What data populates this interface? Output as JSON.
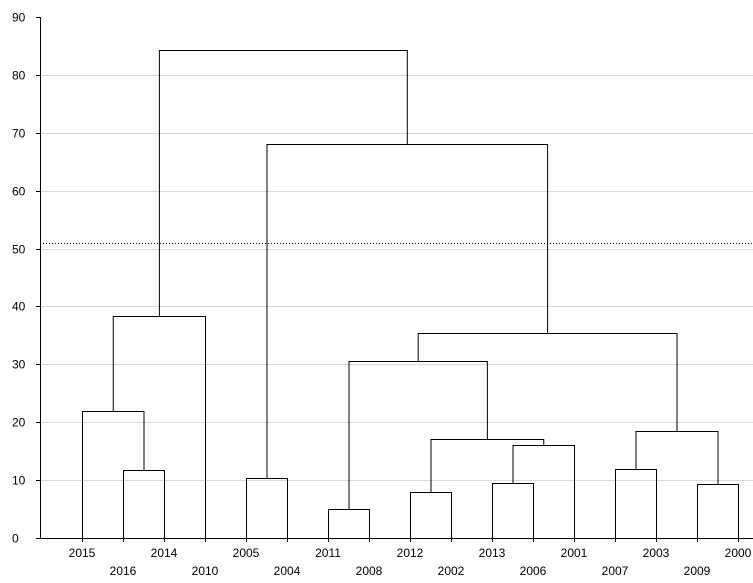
{
  "chart_data": {
    "type": "dendrogram",
    "title": "",
    "xlabel": "",
    "ylabel": "",
    "ylim": [
      0,
      90
    ],
    "y_ticks": [
      0,
      10,
      20,
      30,
      40,
      50,
      60,
      70,
      80,
      90
    ],
    "grid": true,
    "cut_line": 51,
    "leaves": [
      "2015",
      "2016",
      "2014",
      "2010",
      "2005",
      "2004",
      "2011",
      "2008",
      "2012",
      "2002",
      "2013",
      "2006",
      "2001",
      "2007",
      "2003",
      "2009",
      "2000"
    ],
    "merges": [
      {
        "left": "2011",
        "right": "2008",
        "height": 5
      },
      {
        "left": "2012",
        "right": "2002",
        "height": 8
      },
      {
        "left": "2007",
        "right": "2003",
        "height": 12
      },
      {
        "left": "2013",
        "right": "2006",
        "height": 9.5
      },
      {
        "left": "2009",
        "right": "2000",
        "height": 9.3
      },
      {
        "left": "2005",
        "right": "2004",
        "height": 10.3
      },
      {
        "left": "2016",
        "right": "2014",
        "height": 11.7
      },
      {
        "left": "2015",
        "right": "[2016, 2014]",
        "height": 21.9
      },
      {
        "left": "[2013, 2006]",
        "right": "2001",
        "height": 16
      },
      {
        "left": "[2012, 2002]",
        "right": "[2013, 2006, 2001]",
        "height": 17.1
      },
      {
        "left": "[2007, 2003]",
        "right": "[2009, 2000]",
        "height": 18.4
      },
      {
        "left": "[2011, 2008]",
        "right": "[2012, 2002, 2013, 2006, 2001]",
        "height": 30.5
      },
      {
        "left": "[2011 … 2001]",
        "right": "[2007, 2003, 2009, 2000]",
        "height": 35.4
      },
      {
        "left": "[2015, 2016, 2014]",
        "right": "2010",
        "height": 38.3
      },
      {
        "left": "[2005, 2004]",
        "right": "[2011 … 2000]",
        "height": 68
      },
      {
        "left": "[2015, 2016, 2014, 2010]",
        "right": "[2005 … 2000]",
        "height": 84.3
      }
    ]
  }
}
